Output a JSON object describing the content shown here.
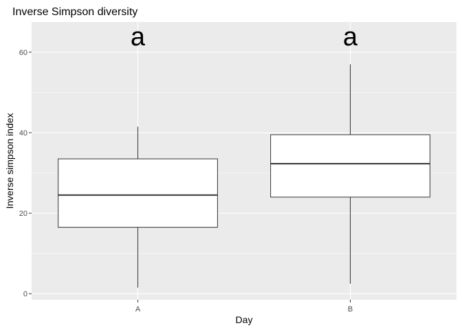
{
  "chart_data": {
    "type": "boxplot",
    "title": "Inverse Simpson diversity",
    "xlabel": "Day",
    "ylabel": "Inverse simpson index",
    "categories": [
      "A",
      "B"
    ],
    "boxes": [
      {
        "category": "A",
        "whisker_low": 1.5,
        "q1": 16.5,
        "median": 24.5,
        "q3": 33.5,
        "whisker_high": 41.5,
        "annotation": "a"
      },
      {
        "category": "B",
        "whisker_low": 2.5,
        "q1": 24.0,
        "median": 32.3,
        "q3": 39.5,
        "whisker_high": 57.0,
        "annotation": "a"
      }
    ],
    "ylim": [
      -1.5,
      67.5
    ],
    "yticks": [
      0,
      20,
      40,
      60
    ],
    "yticks_minor": [
      10,
      30,
      50
    ],
    "grid": true,
    "legend": "none",
    "colors": {
      "panel": "#ebebeb",
      "grid": "#ffffff",
      "box_fill": "#ffffff",
      "box_line": "#333333",
      "whisker": "#333333",
      "tick_text": "#4d4d4d"
    }
  }
}
